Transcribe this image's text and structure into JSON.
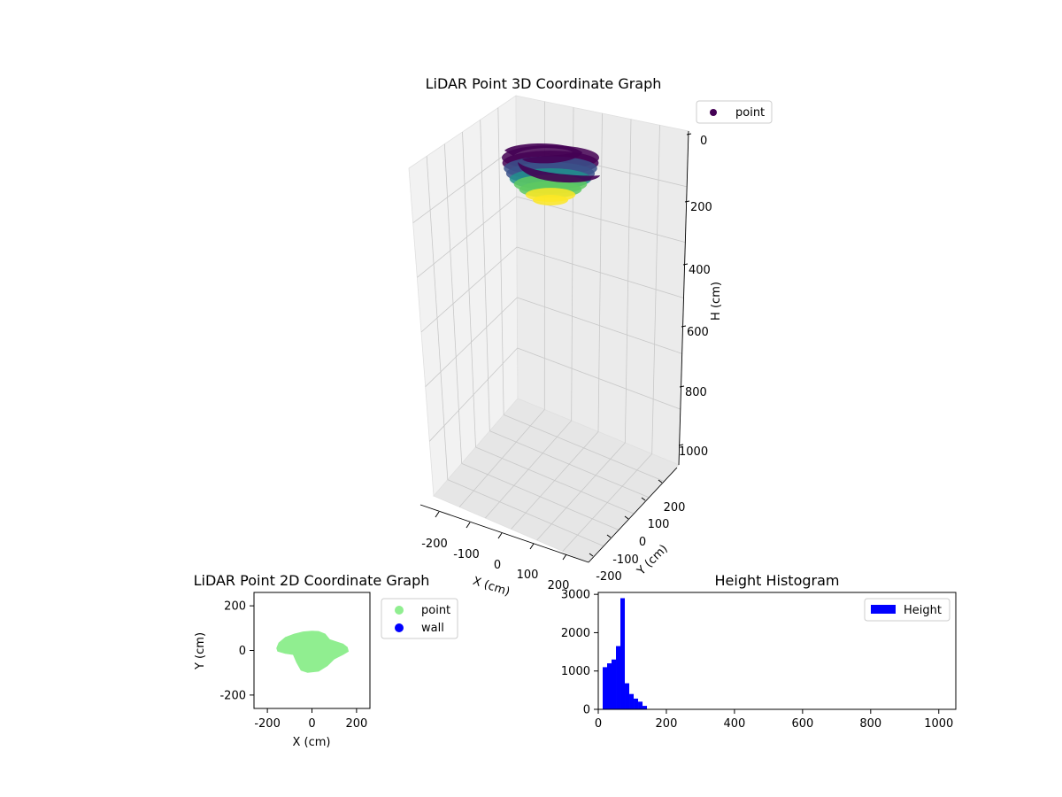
{
  "chart_data": [
    {
      "type": "scatter3d",
      "title": "LiDAR Point 3D Coordinate Graph",
      "xlabel": "X (cm)",
      "ylabel": "Y (cm)",
      "zlabel": "H (cm)",
      "x_ticks": [
        "-200",
        "-100",
        "0",
        "100",
        "200"
      ],
      "y_ticks": [
        "-200",
        "-100",
        "0",
        "100",
        "200"
      ],
      "z_ticks": [
        "0",
        "200",
        "400",
        "600",
        "800",
        "1000"
      ],
      "xlim": [
        -250,
        250
      ],
      "ylim": [
        -250,
        250
      ],
      "zlim": [
        0,
        1050
      ],
      "z_inverted": true,
      "legend": [
        {
          "label": "point",
          "color": "#440154"
        }
      ],
      "colormap": "viridis",
      "cluster": {
        "x_range": [
          -150,
          150
        ],
        "y_range": [
          -100,
          100
        ],
        "h_range": [
          0,
          150
        ],
        "shape": "bowl"
      }
    },
    {
      "type": "scatter",
      "title": "LiDAR Point 2D Coordinate Graph",
      "xlabel": "X (cm)",
      "ylabel": "Y (cm)",
      "x_ticks": [
        "-200",
        "0",
        "200"
      ],
      "y_ticks": [
        "-200",
        "0",
        "200"
      ],
      "xlim": [
        -260,
        260
      ],
      "ylim": [
        -260,
        260
      ],
      "legend": [
        {
          "label": "point",
          "color": "#90ee90"
        },
        {
          "label": "wall",
          "color": "#0000ff"
        }
      ],
      "region": {
        "color": "#90ee90",
        "outline": [
          [
            -160,
            10
          ],
          [
            -150,
            35
          ],
          [
            -120,
            60
          ],
          [
            -80,
            75
          ],
          [
            -40,
            85
          ],
          [
            0,
            88
          ],
          [
            30,
            87
          ],
          [
            60,
            75
          ],
          [
            80,
            50
          ],
          [
            110,
            40
          ],
          [
            140,
            30
          ],
          [
            160,
            15
          ],
          [
            165,
            -5
          ],
          [
            140,
            -20
          ],
          [
            100,
            -40
          ],
          [
            70,
            -70
          ],
          [
            30,
            -95
          ],
          [
            -20,
            -100
          ],
          [
            -50,
            -90
          ],
          [
            -70,
            -55
          ],
          [
            -85,
            -20
          ],
          [
            -120,
            -15
          ],
          [
            -155,
            -5
          ]
        ]
      }
    },
    {
      "type": "bar",
      "title": "Height Histogram",
      "xlabel": "",
      "ylabel": "",
      "x_ticks": [
        "0",
        "200",
        "400",
        "600",
        "800",
        "1000"
      ],
      "y_ticks": [
        "0",
        "1000",
        "2000",
        "3000"
      ],
      "xlim": [
        0,
        1050
      ],
      "ylim": [
        0,
        3050
      ],
      "bin_width": 13,
      "bin_starts": [
        13,
        26,
        39,
        52,
        65,
        78,
        91,
        104,
        117,
        130
      ],
      "values": [
        1100,
        1200,
        1300,
        1650,
        2900,
        680,
        400,
        280,
        200,
        90
      ],
      "color": "#0000ff",
      "legend": [
        {
          "label": "Height",
          "color": "#0000ff"
        }
      ]
    }
  ]
}
